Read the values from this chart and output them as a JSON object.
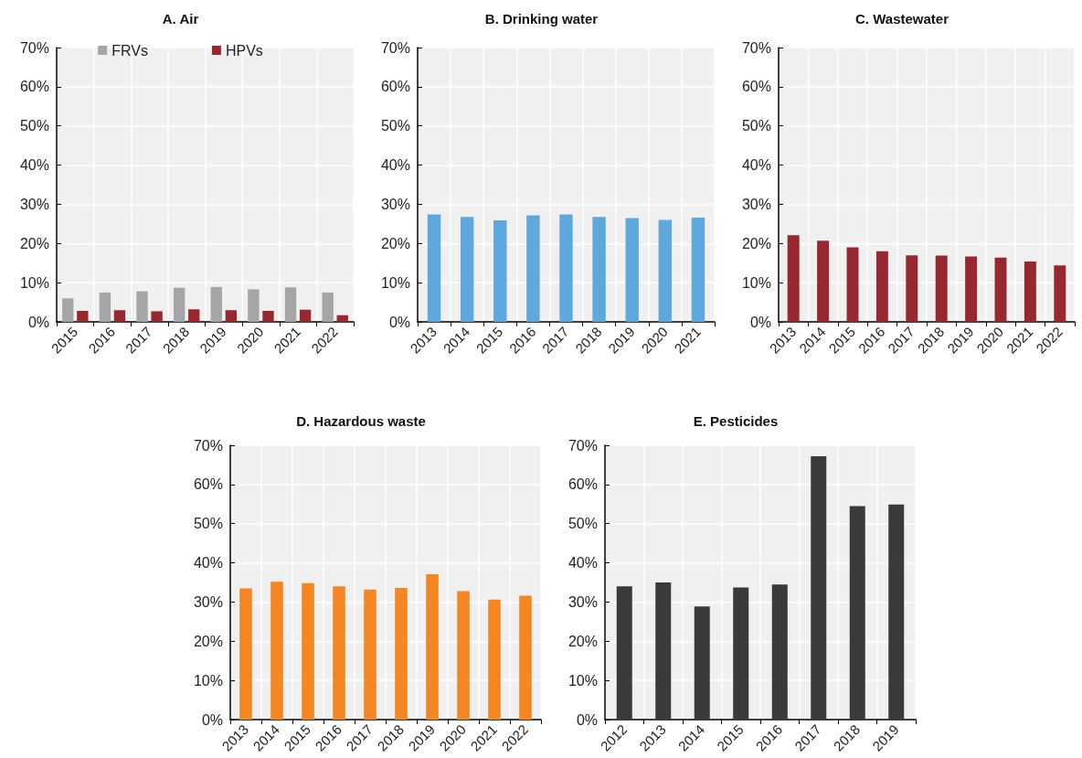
{
  "chart_data": [
    {
      "type": "bar",
      "title": "A. Air",
      "categories": [
        "2015",
        "2016",
        "2017",
        "2018",
        "2019",
        "2020",
        "2021",
        "2022"
      ],
      "series": [
        {
          "name": "FRVs",
          "color": "#a5a5a5",
          "values": [
            6.0,
            7.5,
            7.8,
            8.7,
            8.9,
            8.3,
            8.8,
            7.5
          ]
        },
        {
          "name": "HPVs",
          "color": "#972830",
          "values": [
            2.8,
            3.0,
            2.7,
            3.2,
            3.0,
            2.8,
            3.1,
            1.7
          ]
        }
      ],
      "ylim": [
        0,
        70
      ],
      "yticks": [
        {
          "value": 0,
          "label": "0%"
        },
        {
          "value": 10,
          "label": "10%"
        },
        {
          "value": 20,
          "label": "20%"
        },
        {
          "value": 30,
          "label": "30%"
        },
        {
          "value": 40,
          "label": "40%"
        },
        {
          "value": 50,
          "label": "50%"
        },
        {
          "value": 60,
          "label": "60%"
        },
        {
          "value": 70,
          "label": "70%"
        }
      ],
      "grid": true,
      "legend": "top"
    },
    {
      "type": "bar",
      "title": "B. Drinking water",
      "categories": [
        "2013",
        "2014",
        "2015",
        "2016",
        "2017",
        "2018",
        "2019",
        "2020",
        "2021"
      ],
      "series": [
        {
          "color": "#5fa8dd",
          "values": [
            27.4,
            26.8,
            25.9,
            27.2,
            27.4,
            26.8,
            26.5,
            26.0,
            26.6
          ]
        }
      ],
      "ylim": [
        0,
        70
      ],
      "yticks": [
        {
          "value": 0,
          "label": "0%"
        },
        {
          "value": 10,
          "label": "10%"
        },
        {
          "value": 20,
          "label": "20%"
        },
        {
          "value": 30,
          "label": "30%"
        },
        {
          "value": 40,
          "label": "40%"
        },
        {
          "value": 50,
          "label": "50%"
        },
        {
          "value": 60,
          "label": "60%"
        },
        {
          "value": 70,
          "label": "70%"
        }
      ],
      "grid": true
    },
    {
      "type": "bar",
      "title": "C. Wastewater",
      "categories": [
        "2013",
        "2014",
        "2015",
        "2016",
        "2017",
        "2018",
        "2019",
        "2020",
        "2021",
        "2022"
      ],
      "series": [
        {
          "color": "#972830",
          "values": [
            22.1,
            20.7,
            19.0,
            18.0,
            17.0,
            16.9,
            16.7,
            16.4,
            15.4,
            14.4
          ]
        }
      ],
      "ylim": [
        0,
        70
      ],
      "yticks": [
        {
          "value": 0,
          "label": "0%"
        },
        {
          "value": 10,
          "label": "10%"
        },
        {
          "value": 20,
          "label": "20%"
        },
        {
          "value": 30,
          "label": "30%"
        },
        {
          "value": 40,
          "label": "40%"
        },
        {
          "value": 50,
          "label": "50%"
        },
        {
          "value": 60,
          "label": "60%"
        },
        {
          "value": 70,
          "label": "70%"
        }
      ],
      "grid": true
    },
    {
      "type": "bar",
      "title": "D. Hazardous waste",
      "categories": [
        "2013",
        "2014",
        "2015",
        "2016",
        "2017",
        "2018",
        "2019",
        "2020",
        "2021",
        "2022"
      ],
      "series": [
        {
          "color": "#f58624",
          "values": [
            33.5,
            35.2,
            34.8,
            34.0,
            33.2,
            33.6,
            37.1,
            32.8,
            30.6,
            31.6
          ]
        }
      ],
      "ylim": [
        0,
        70
      ],
      "yticks": [
        {
          "value": 0,
          "label": "0%"
        },
        {
          "value": 10,
          "label": "10%"
        },
        {
          "value": 20,
          "label": "20%"
        },
        {
          "value": 30,
          "label": "30%"
        },
        {
          "value": 40,
          "label": "40%"
        },
        {
          "value": 50,
          "label": "50%"
        },
        {
          "value": 60,
          "label": "60%"
        },
        {
          "value": 70,
          "label": "70%"
        }
      ],
      "grid": true
    },
    {
      "type": "bar",
      "title": "E. Pesticides",
      "categories": [
        "2012",
        "2013",
        "2014",
        "2015",
        "2016",
        "2017",
        "2018",
        "2019"
      ],
      "series": [
        {
          "color": "#3a3a3a",
          "values": [
            34.0,
            35.0,
            28.9,
            33.7,
            34.5,
            67.2,
            54.5,
            54.9
          ]
        }
      ],
      "ylim": [
        0,
        70
      ],
      "yticks": [
        {
          "value": 0,
          "label": "0%"
        },
        {
          "value": 10,
          "label": "10%"
        },
        {
          "value": 20,
          "label": "20%"
        },
        {
          "value": 30,
          "label": "30%"
        },
        {
          "value": 40,
          "label": "40%"
        },
        {
          "value": 50,
          "label": "50%"
        },
        {
          "value": 60,
          "label": "60%"
        },
        {
          "value": 70,
          "label": "70%"
        }
      ],
      "grid": true
    }
  ]
}
